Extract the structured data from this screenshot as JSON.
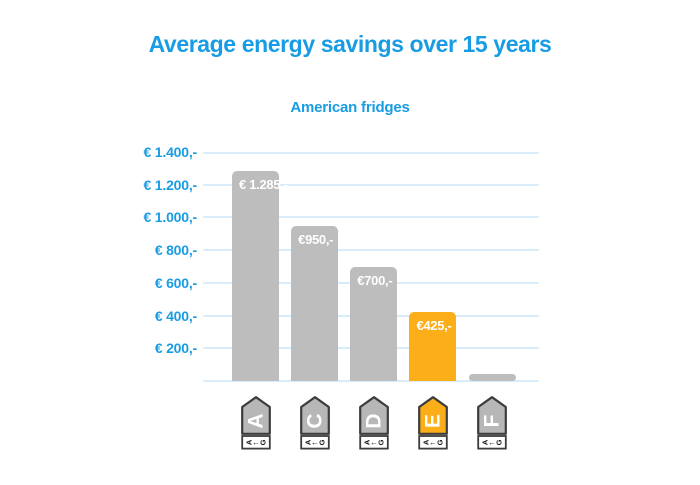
{
  "chart_data": {
    "type": "bar",
    "title": "Average energy savings over 15 years",
    "subtitle": "American fridges",
    "categories": [
      "A",
      "C",
      "D",
      "E",
      "F"
    ],
    "values": [
      1285,
      950,
      700,
      425,
      45
    ],
    "bar_labels": [
      "€ 1.285,-",
      "€950,-",
      "€700,-",
      "€425,-",
      ""
    ],
    "bar_colors": [
      "#BDBDBD",
      "#BDBDBD",
      "#BDBDBD",
      "#FBAE17",
      "#BDBDBD"
    ],
    "highlighted_category": "E",
    "y_ticks": [
      {
        "value": 1400,
        "label": "€ 1.400,-"
      },
      {
        "value": 1200,
        "label": "€ 1.200,-"
      },
      {
        "value": 1000,
        "label": "€ 1.000,-"
      },
      {
        "value": 800,
        "label": "€ 800,-"
      },
      {
        "value": 600,
        "label": "€ 600,-"
      },
      {
        "value": 400,
        "label": "€ 400,-"
      },
      {
        "value": 200,
        "label": "€ 200,-"
      }
    ],
    "ylim": [
      0,
      1400
    ],
    "grid": true,
    "legend": "none",
    "energy_tags": [
      {
        "letter": "A",
        "color": "#B7B7B7"
      },
      {
        "letter": "C",
        "color": "#B7B7B7"
      },
      {
        "letter": "D",
        "color": "#B7B7B7"
      },
      {
        "letter": "E",
        "color": "#FBAE17"
      },
      {
        "letter": "F",
        "color": "#B7B7B7"
      }
    ],
    "energy_scale": {
      "from": "A",
      "arrow": "←",
      "to": "G"
    }
  },
  "colors": {
    "background": "#FFFFFF",
    "accent_blue": "#189CE4",
    "bar_gray": "#BDBDBD",
    "highlight_orange": "#FBAE17",
    "gridline_blue": "#D8ECF9",
    "tag_border": "#3C3C3C",
    "bar_label_text": "#FFFFFF",
    "scale_text": "#1A1A1A"
  }
}
